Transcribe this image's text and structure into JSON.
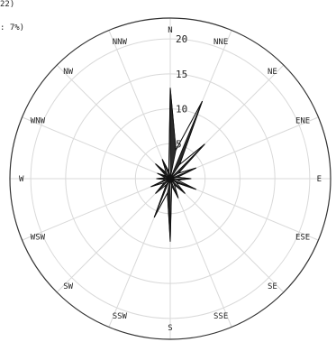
{
  "header": {
    "line1": "22)",
    "line2": ": 7%)"
  },
  "chart_data": {
    "type": "wind-rose",
    "directions": [
      "N",
      "NNE",
      "NE",
      "ENE",
      "E",
      "ESE",
      "SE",
      "SSE",
      "S",
      "SSW",
      "SW",
      "WSW",
      "W",
      "WNW",
      "NW",
      "NNW"
    ],
    "values": [
      13,
      12,
      7,
      4,
      3,
      4,
      3,
      3,
      9,
      6,
      3,
      3,
      2,
      2,
      3,
      3
    ],
    "radial_ticks": [
      5,
      10,
      15,
      20
    ],
    "rlim": [
      0,
      20
    ],
    "grid": true,
    "colors": {
      "petal": "#2a2a2a",
      "outline": "#111111",
      "grid": "#d9d9d9",
      "frame": "#333333"
    }
  }
}
